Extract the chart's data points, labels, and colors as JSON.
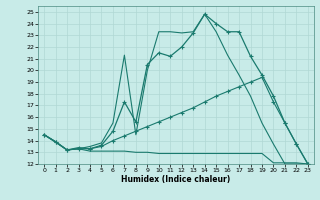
{
  "xlabel": "Humidex (Indice chaleur)",
  "xlim": [
    -0.5,
    23.5
  ],
  "ylim": [
    12,
    25.5
  ],
  "yticks": [
    12,
    13,
    14,
    15,
    16,
    17,
    18,
    19,
    20,
    21,
    22,
    23,
    24,
    25
  ],
  "xticks": [
    0,
    1,
    2,
    3,
    4,
    5,
    6,
    7,
    8,
    9,
    10,
    11,
    12,
    13,
    14,
    15,
    16,
    17,
    18,
    19,
    20,
    21,
    22,
    23
  ],
  "background_color": "#c8ebe8",
  "grid_color": "#b0d8d4",
  "line_color": "#1a7a6e",
  "lines": [
    {
      "x": [
        0,
        1,
        2,
        3,
        4,
        5,
        6,
        7,
        8,
        9,
        10,
        11,
        12,
        13,
        14,
        15,
        16,
        17,
        18,
        19,
        20,
        21,
        22,
        23
      ],
      "y": [
        14.5,
        13.9,
        13.2,
        13.3,
        13.1,
        13.1,
        13.1,
        13.1,
        13.0,
        13.0,
        12.9,
        12.9,
        12.9,
        12.9,
        12.9,
        12.9,
        12.9,
        12.9,
        12.9,
        12.9,
        12.1,
        12.1,
        12.1,
        12.0
      ],
      "marker": false,
      "lw": 0.8
    },
    {
      "x": [
        0,
        1,
        2,
        3,
        4,
        5,
        6,
        7,
        8,
        9,
        10,
        11,
        12,
        13,
        14,
        15,
        16,
        17,
        18,
        19,
        20,
        21,
        22,
        23
      ],
      "y": [
        14.5,
        13.9,
        13.2,
        13.3,
        13.3,
        13.5,
        14.0,
        14.4,
        14.8,
        15.2,
        15.6,
        16.0,
        16.4,
        16.8,
        17.3,
        17.8,
        18.2,
        18.6,
        19.0,
        19.4,
        17.3,
        15.5,
        13.7,
        12.0
      ],
      "marker": true,
      "lw": 0.8
    },
    {
      "x": [
        0,
        1,
        2,
        3,
        4,
        5,
        6,
        7,
        8,
        9,
        10,
        11,
        12,
        13,
        14,
        15,
        16,
        17,
        18,
        19,
        20,
        21,
        22,
        23
      ],
      "y": [
        14.5,
        13.9,
        13.2,
        13.4,
        13.3,
        13.6,
        14.8,
        17.3,
        15.6,
        20.5,
        21.5,
        21.2,
        22.0,
        23.2,
        24.8,
        24.0,
        23.3,
        23.3,
        21.2,
        19.6,
        17.8,
        15.5,
        13.7,
        12.0
      ],
      "marker": true,
      "lw": 0.9
    },
    {
      "x": [
        0,
        2,
        3,
        4,
        5,
        6,
        7,
        8,
        9,
        10,
        11,
        12,
        13,
        14,
        15,
        16,
        17,
        18,
        19,
        20,
        21,
        22,
        23
      ],
      "y": [
        14.5,
        13.2,
        13.3,
        13.5,
        13.8,
        15.5,
        21.3,
        14.5,
        20.0,
        23.3,
        23.3,
        23.2,
        23.3,
        24.8,
        23.3,
        21.3,
        19.6,
        17.8,
        15.5,
        13.7,
        12.0,
        12.0,
        12.0
      ],
      "marker": false,
      "lw": 0.8
    }
  ]
}
